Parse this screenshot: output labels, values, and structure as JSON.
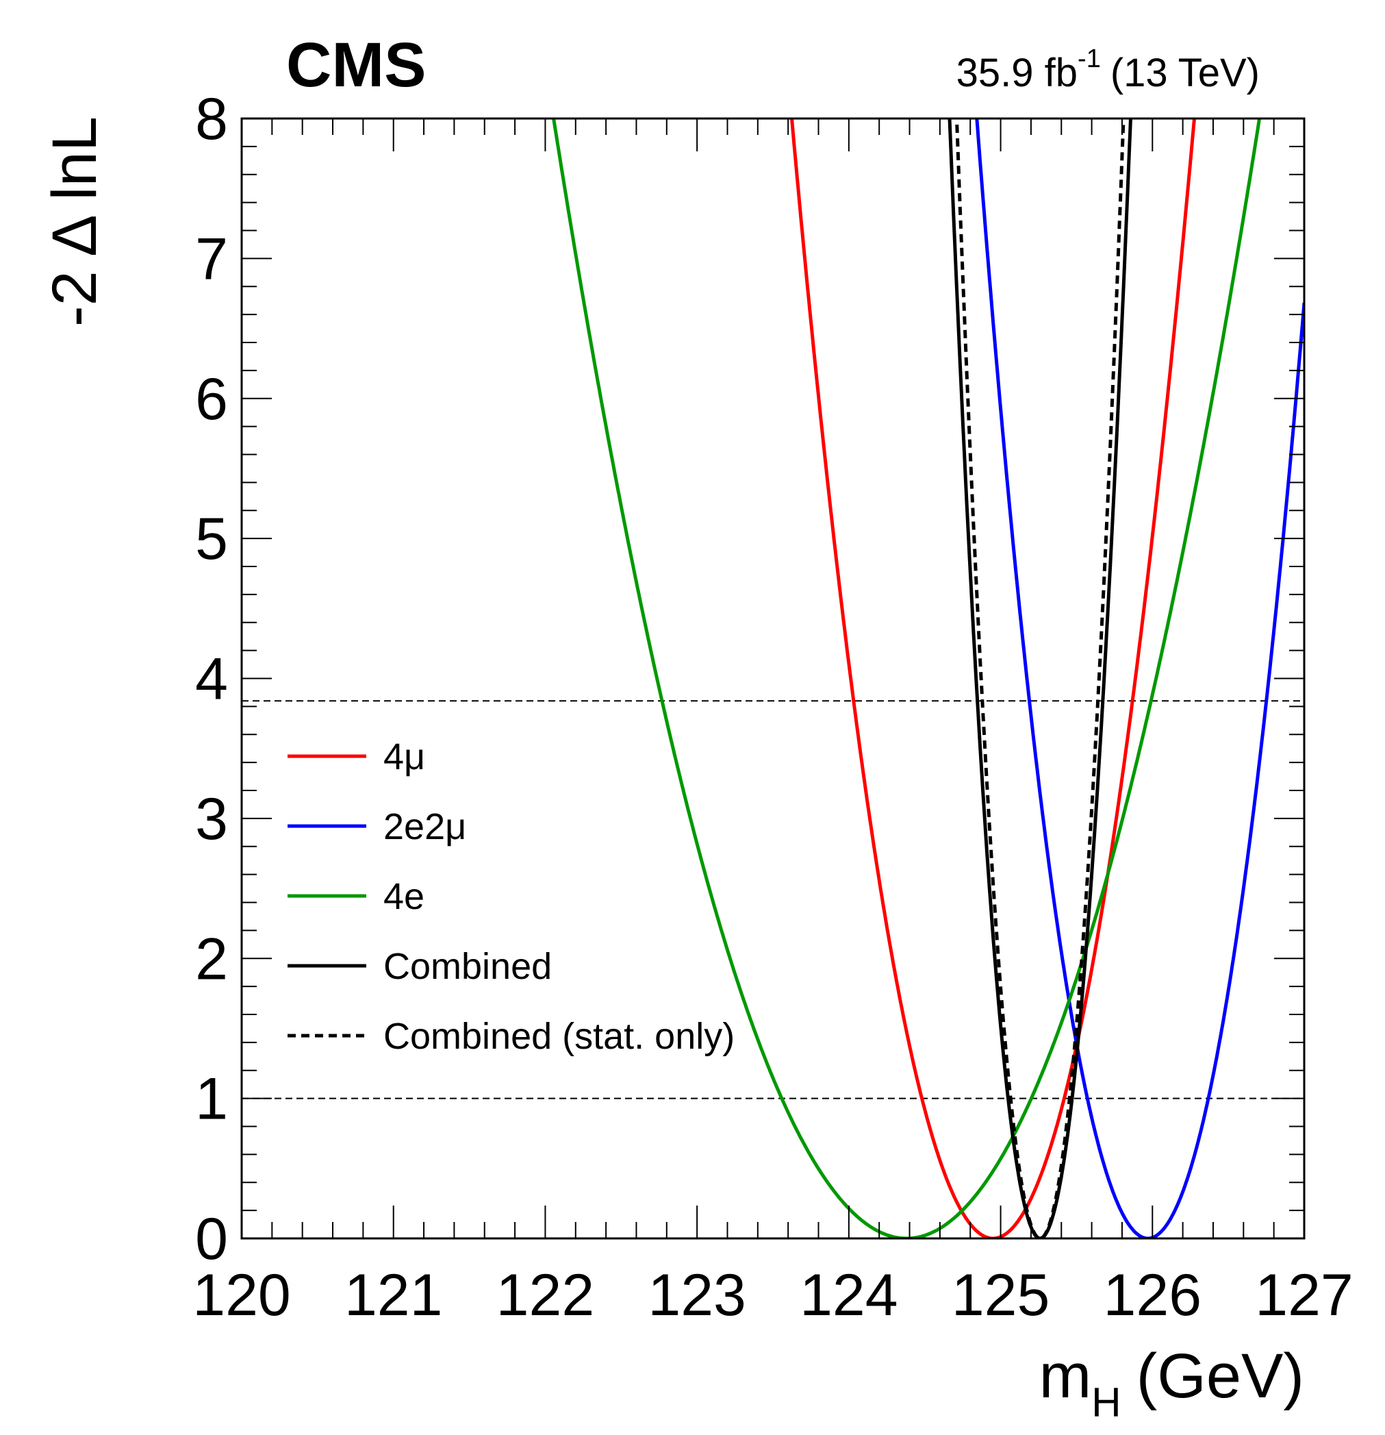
{
  "chart_data": {
    "type": "line",
    "experiment_label": "CMS",
    "lumi_label": {
      "value": "35.9 fb",
      "superscript": "-1",
      "energy": "(13 TeV)"
    },
    "ylabel": "-2 Δ lnL",
    "xlabel": {
      "main": "m",
      "subscript": "H",
      "unit": "(GeV)"
    },
    "xlim": [
      120,
      127
    ],
    "ylim": [
      0,
      8
    ],
    "x_ticks": [
      "120",
      "121",
      "122",
      "123",
      "124",
      "125",
      "126",
      "127"
    ],
    "y_ticks": [
      "0",
      "1",
      "2",
      "3",
      "4",
      "5",
      "6",
      "7",
      "8"
    ],
    "reference_lines": [
      1.0,
      3.84
    ],
    "series": [
      {
        "name": "4μ",
        "color": "#ff0000",
        "dash": "solid",
        "min_x": 124.95,
        "min_y": 0,
        "curvature": 4.55
      },
      {
        "name": "2e2μ",
        "color": "#0000ff",
        "dash": "solid",
        "min_x": 125.97,
        "min_y": 0,
        "curvature": 6.3
      },
      {
        "name": "4e",
        "color": "#009900",
        "dash": "solid",
        "min_x": 124.38,
        "min_y": 0,
        "curvature": 1.48
      },
      {
        "name": "Combined",
        "color": "#000000",
        "dash": "solid",
        "min_x": 125.26,
        "min_y": 0,
        "curvature": 22.5
      },
      {
        "name": "Combined (stat. only)",
        "color": "#000000",
        "dash": "dashed",
        "min_x": 125.26,
        "min_y": 0,
        "curvature": 26.5
      }
    ]
  }
}
